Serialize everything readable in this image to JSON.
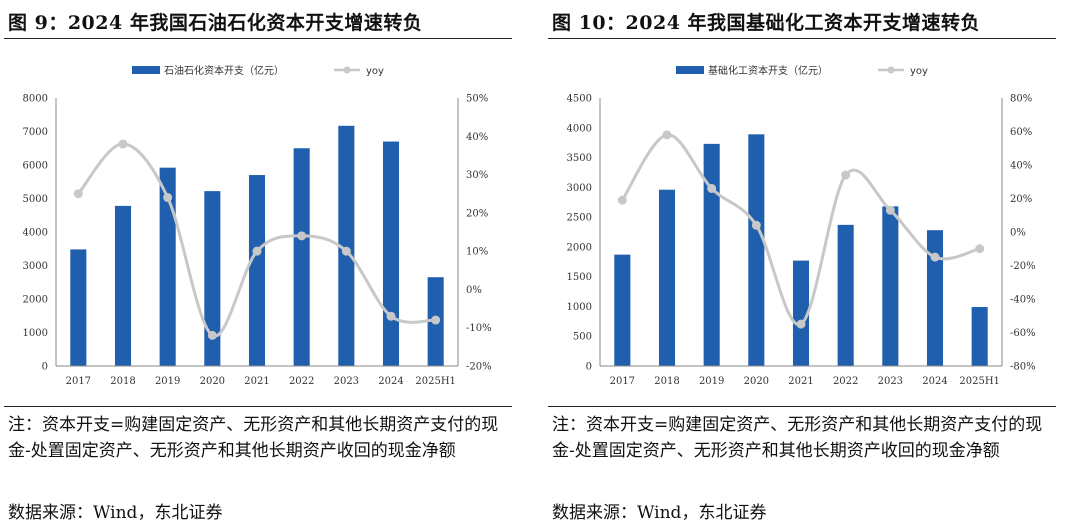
{
  "panels": [
    {
      "title": "图 9：2024 年我国石油石化资本开支增速转负",
      "note": "注：资本开支=购建固定资产、无形资产和其他长期资产支付的现金-处置固定资产、无形资产和其他长期资产收回的现金净额",
      "source": "数据来源：Wind，东北证券"
    },
    {
      "title": "图 10：2024 年我国基础化工资本开支增速转负",
      "note": "注：资本开支=购建固定资产、无形资产和其他长期资产支付的现金-处置固定资产、无形资产和其他长期资产收回的现金净额",
      "source": "数据来源：Wind，东北证券"
    }
  ],
  "chart_data": [
    {
      "type": "bar",
      "title": "图 9：2024 年我国石油石化资本开支增速转负",
      "categories": [
        "2017",
        "2018",
        "2019",
        "2020",
        "2021",
        "2022",
        "2023",
        "2024",
        "2025H1"
      ],
      "series": [
        {
          "name": "石油石化资本开支（亿元）",
          "kind": "bar",
          "axis": "left",
          "color": "#1f5fae",
          "values": [
            3480,
            4780,
            5920,
            5220,
            5700,
            6500,
            7170,
            6700,
            2650
          ]
        },
        {
          "name": "yoy",
          "kind": "line",
          "axis": "right",
          "color": "#c8c8c8",
          "unit": "%",
          "values": [
            25,
            38,
            24,
            -12,
            10,
            14,
            10,
            -7,
            -8
          ]
        }
      ],
      "ylim": [
        0,
        8000
      ],
      "yticks": [
        "0",
        "1000",
        "2000",
        "3000",
        "4000",
        "5000",
        "6000",
        "7000",
        "8000"
      ],
      "y2lim": [
        -20,
        50
      ],
      "y2ticks": [
        "-20%",
        "-10%",
        "0%",
        "10%",
        "20%",
        "30%",
        "40%",
        "50%"
      ],
      "legend": "top-center"
    },
    {
      "type": "bar",
      "title": "图 10：2024 年我国基础化工资本开支增速转负",
      "categories": [
        "2017",
        "2018",
        "2019",
        "2020",
        "2021",
        "2022",
        "2023",
        "2024",
        "2025H1"
      ],
      "series": [
        {
          "name": "基础化工资本开支（亿元）",
          "kind": "bar",
          "axis": "left",
          "color": "#1f5fae",
          "values": [
            1870,
            2960,
            3730,
            3890,
            1770,
            2370,
            2680,
            2280,
            990
          ]
        },
        {
          "name": "yoy",
          "kind": "line",
          "axis": "right",
          "color": "#c8c8c8",
          "unit": "%",
          "values": [
            19,
            58,
            26,
            4,
            -55,
            34,
            13,
            -15,
            -10
          ]
        }
      ],
      "ylim": [
        0,
        4500
      ],
      "yticks": [
        "0",
        "500",
        "1000",
        "1500",
        "2000",
        "2500",
        "3000",
        "3500",
        "4000",
        "4500"
      ],
      "y2lim": [
        -80,
        80
      ],
      "y2ticks": [
        "-80%",
        "-60%",
        "-40%",
        "-20%",
        "0%",
        "20%",
        "40%",
        "60%",
        "80%"
      ],
      "legend": "top-center"
    }
  ]
}
